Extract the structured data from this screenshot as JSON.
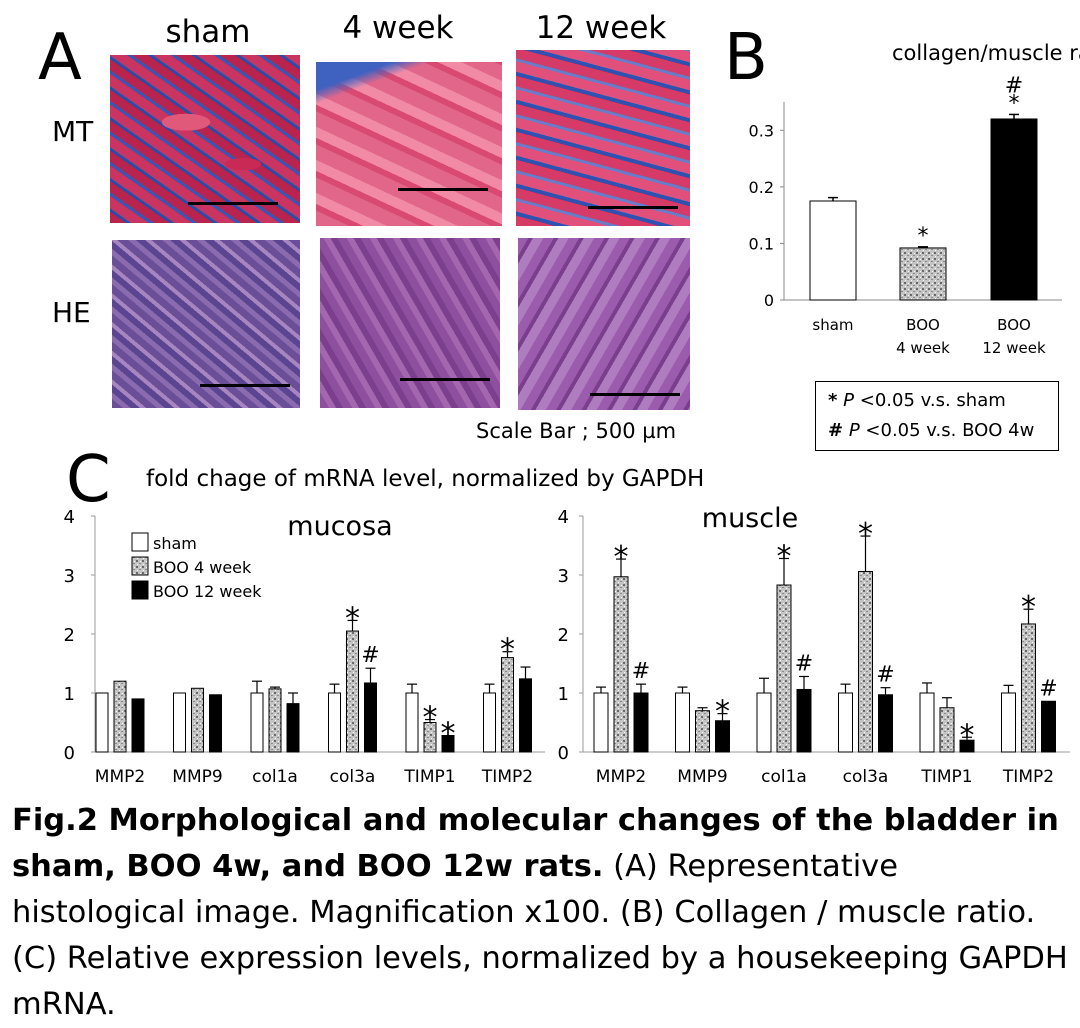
{
  "panelA": {
    "letter": "A",
    "columns": [
      "sham",
      "4 week",
      "12 week"
    ],
    "rows": [
      "MT",
      "HE"
    ],
    "scale_bar_label": "Scale Bar ; 500 µm"
  },
  "panelB": {
    "letter": "B"
  },
  "panelC": {
    "letter": "C",
    "title": "fold chage of mRNA level, normalized by GAPDH"
  },
  "stats_legend": {
    "star_symbol": "*",
    "hash_symbol": "#",
    "p_symbol": "P",
    "star_text": " <0.05 v.s. sham",
    "hash_text": " <0.05 v.s. BOO 4w"
  },
  "caption": {
    "bold": "Fig.2 Morphological and molecular changes of the bladder in sham, BOO 4w, and BOO 12w rats.",
    "rest": " (A) Representative histological image. Magnification x100. (B) Collagen / muscle ratio. (C) Relative expression levels, normalized by a housekeeping GAPDH mRNA."
  },
  "colors": {
    "sham": "#ffffff",
    "boo4": "#b8b8b8",
    "boo12": "#000000",
    "mt_red": "#d8305a",
    "mt_blue": "#2a4aa8",
    "he_purple": "#9a5aa8"
  },
  "chart_data": [
    {
      "type": "bar",
      "title": "collagen/muscle ratio",
      "categories": [
        "sham",
        "BOO 4 week",
        "BOO 12 week"
      ],
      "values": [
        0.175,
        0.092,
        0.32
      ],
      "errors": [
        0.006,
        0.002,
        0.008
      ],
      "annotations": [
        "",
        "*",
        "# *"
      ],
      "ylim": [
        0,
        0.35
      ],
      "yticks": [
        "0",
        "0.1",
        "0.2",
        "0.3"
      ]
    },
    {
      "type": "bar",
      "title": "mucosa",
      "categories": [
        "MMP2",
        "MMP9",
        "col1a",
        "col3a",
        "TIMP1",
        "TIMP2"
      ],
      "series": [
        {
          "name": "sham",
          "values": [
            1.0,
            1.0,
            1.0,
            1.0,
            1.0,
            1.0
          ],
          "errors": [
            0,
            0,
            0.2,
            0.15,
            0.15,
            0.15
          ]
        },
        {
          "name": "BOO 4 week",
          "values": [
            1.2,
            1.08,
            1.07,
            2.05,
            0.5,
            1.6
          ],
          "errors": [
            0,
            0,
            0.03,
            0.18,
            0.05,
            0.1
          ]
        },
        {
          "name": "BOO 12 week",
          "values": [
            0.9,
            0.97,
            0.82,
            1.17,
            0.28,
            1.24
          ],
          "errors": [
            0,
            0,
            0.18,
            0.25,
            0,
            0.2
          ]
        }
      ],
      "annotations": {
        "col3a": [
          "",
          "*",
          "#"
        ],
        "TIMP1": [
          "",
          "*",
          "*"
        ],
        "TIMP2": [
          "",
          "*",
          ""
        ]
      },
      "ylim": [
        0,
        4
      ],
      "yticks": [
        "0",
        "1",
        "2",
        "3",
        "4"
      ]
    },
    {
      "type": "bar",
      "title": "muscle",
      "categories": [
        "MMP2",
        "MMP9",
        "col1a",
        "col3a",
        "TIMP1",
        "TIMP2"
      ],
      "series": [
        {
          "name": "sham",
          "values": [
            1.0,
            1.0,
            1.0,
            1.0,
            1.0,
            1.0
          ],
          "errors": [
            0.1,
            0.1,
            0.25,
            0.15,
            0.17,
            0.13
          ]
        },
        {
          "name": "BOO 4 week",
          "values": [
            2.97,
            0.7,
            2.83,
            3.06,
            0.75,
            2.17
          ],
          "errors": [
            0.3,
            0.05,
            0.45,
            0.6,
            0.17,
            0.25
          ]
        },
        {
          "name": "BOO 12 week",
          "values": [
            1.0,
            0.53,
            1.06,
            0.97,
            0.2,
            0.86
          ],
          "errors": [
            0.15,
            0.12,
            0.22,
            0.12,
            0.05,
            0
          ]
        }
      ],
      "annotations": {
        "MMP2": [
          "",
          "*",
          "#"
        ],
        "MMP9": [
          "",
          "",
          "*"
        ],
        "col1a": [
          "",
          "*",
          "#"
        ],
        "col3a": [
          "",
          "*",
          "#"
        ],
        "TIMP1": [
          "",
          "",
          "*"
        ],
        "TIMP2": [
          "",
          "*",
          "#"
        ]
      },
      "ylim": [
        0,
        4
      ],
      "yticks": [
        "0",
        "1",
        "2",
        "3",
        "4"
      ]
    }
  ]
}
